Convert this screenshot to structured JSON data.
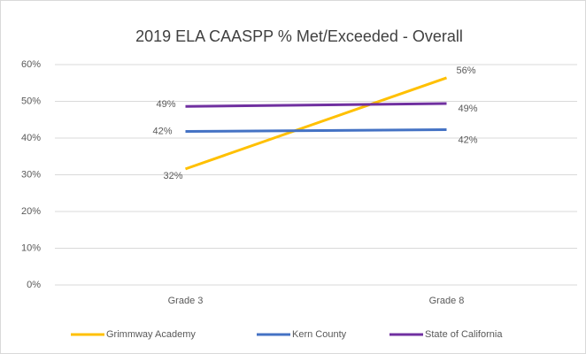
{
  "chart_data": {
    "type": "line",
    "title": "2019 ELA CAASPP % Met/Exceeded - Overall",
    "categories": [
      "Grade 3",
      "Grade 8"
    ],
    "series": [
      {
        "name": "Grimmway Academy",
        "color": "#ffc000",
        "values": [
          31.6,
          56.4
        ],
        "value_labels": [
          "32%",
          "56%"
        ]
      },
      {
        "name": "Kern County",
        "color": "#4472c4",
        "values": [
          41.8,
          42.3
        ],
        "value_labels": [
          "42%",
          "42%"
        ]
      },
      {
        "name": "State of California",
        "color": "#7030a0",
        "values": [
          48.6,
          49.4
        ],
        "value_labels": [
          "49%",
          "49%"
        ]
      }
    ],
    "ylim": [
      0,
      60
    ],
    "yticks": [
      {
        "value": 0,
        "label": "0%"
      },
      {
        "value": 10,
        "label": "10%"
      },
      {
        "value": 20,
        "label": "20%"
      },
      {
        "value": 30,
        "label": "30%"
      },
      {
        "value": 40,
        "label": "40%"
      },
      {
        "value": 50,
        "label": "50%"
      },
      {
        "value": 60,
        "label": "60%"
      }
    ],
    "grid": true,
    "legend": "bottom"
  }
}
